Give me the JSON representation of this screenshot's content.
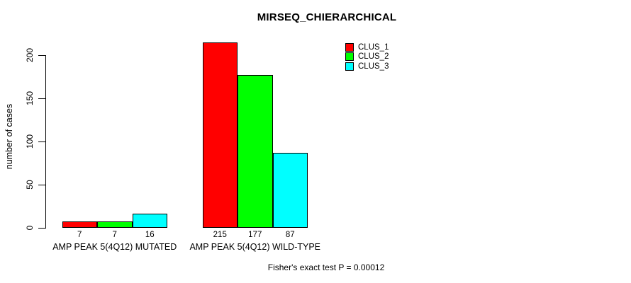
{
  "chart_data": {
    "type": "bar",
    "title": "MIRSEQ_CHIERARCHICAL",
    "xlabel": "",
    "ylabel": "number of cases",
    "ylim": [
      0,
      215
    ],
    "yticks": [
      0,
      50,
      100,
      150,
      200
    ],
    "grid": false,
    "legend_position": "top-right",
    "categories": [
      "AMP PEAK 5(4Q12) MUTATED",
      "AMP PEAK 5(4Q12) WILD-TYPE"
    ],
    "series": [
      {
        "name": "CLUS_1",
        "color": "#ff0000",
        "values": [
          7,
          215
        ]
      },
      {
        "name": "CLUS_2",
        "color": "#00ff00",
        "values": [
          7,
          177
        ]
      },
      {
        "name": "CLUS_3",
        "color": "#00ffff",
        "values": [
          16,
          87
        ]
      }
    ],
    "bar_value_labels": [
      [
        7,
        7,
        16
      ],
      [
        215,
        177,
        87
      ]
    ],
    "annotation": "Fisher's exact test P = 0.00012"
  },
  "colors": {
    "background": "#ffffff",
    "axis": "#000000",
    "bar_border": "#000000",
    "text": "#000000"
  }
}
